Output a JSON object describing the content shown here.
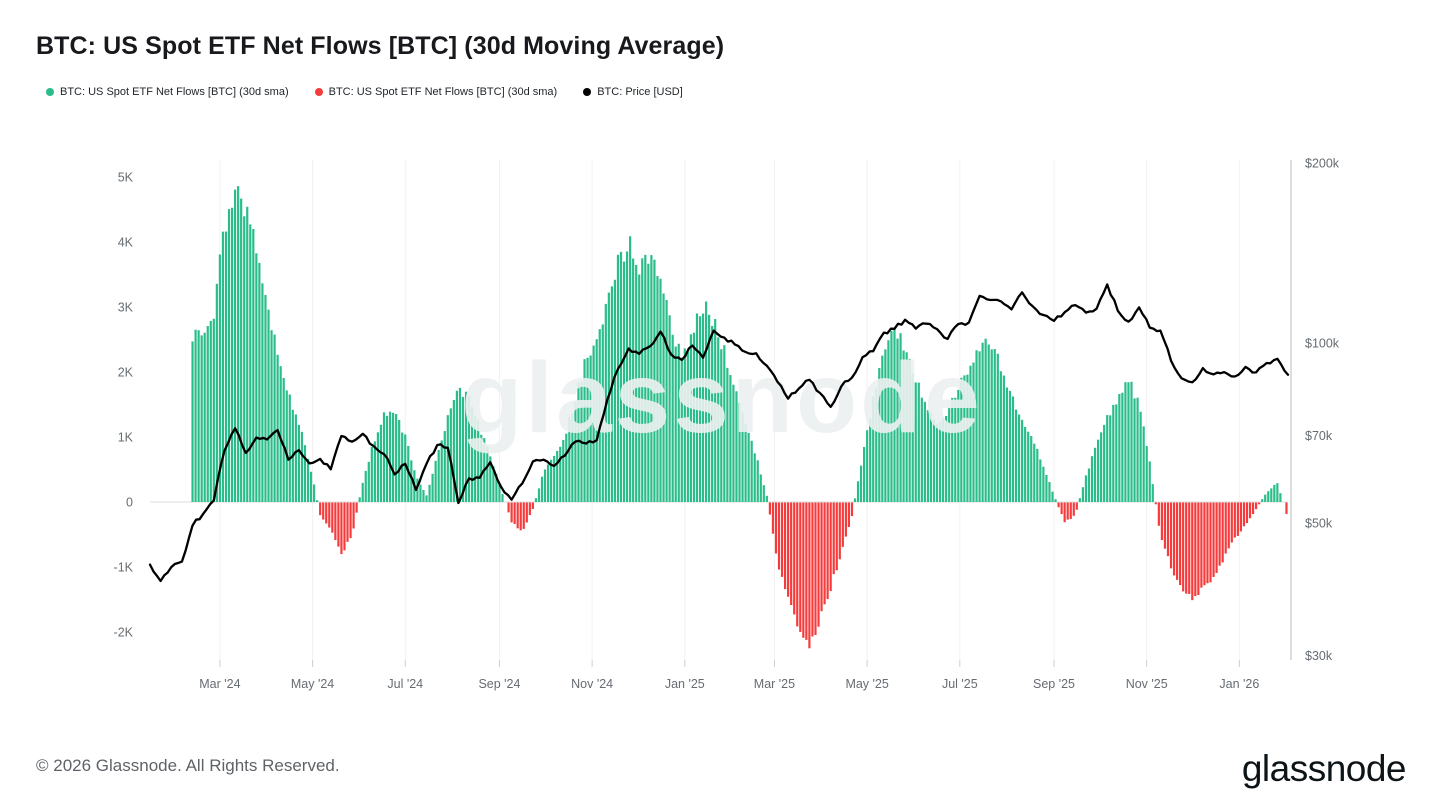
{
  "header": {
    "title": "BTC: US Spot ETF Net Flows [BTC] (30d Moving Average)"
  },
  "legend": [
    {
      "label": "BTC: US Spot ETF Net Flows [BTC] (30d sma)",
      "color": "#2ABD8A"
    },
    {
      "label": "BTC: US Spot ETF Net Flows [BTC] (30d sma)",
      "color": "#F53B3B"
    },
    {
      "label": "BTC: Price [USD]",
      "color": "#000000"
    }
  ],
  "watermark": "glassnode",
  "footer": {
    "copyright": "© 2026 Glassnode. All Rights Reserved.",
    "brand": "glassnode"
  },
  "chart_data": {
    "type": "bar",
    "title": "BTC: US Spot ETF Net Flows [BTC] (30d Moving Average)",
    "series": [
      {
        "name": "BTC: US Spot ETF Net Flows [BTC] (30d sma)",
        "type": "bar",
        "axis": "left",
        "unit": "K BTC"
      },
      {
        "name": "BTC: Price [USD]",
        "type": "line",
        "axis": "right",
        "unit": "USD (thousands)"
      }
    ],
    "colors": {
      "positive": "#2ABD8A",
      "negative": "#F53B3B",
      "price": "#000000"
    },
    "x_domain": [
      "2024-01-15",
      "2026-02-02"
    ],
    "left_axis": {
      "labels": [
        "5K",
        "4K",
        "3K",
        "2K",
        "1K",
        "0",
        "-1K",
        "-2K"
      ],
      "values": [
        5,
        4,
        3,
        2,
        1,
        0,
        -1,
        -2
      ],
      "scale": "linear",
      "unit": "K BTC"
    },
    "right_axis": {
      "labels": [
        "$200k",
        "$100k",
        "$70k",
        "$50k",
        "$30k"
      ],
      "values": [
        200,
        100,
        70,
        50,
        30
      ],
      "scale": "log",
      "unit": "USD (thousands)"
    },
    "x_ticks": [
      {
        "label": "Mar '24",
        "date": "2024-03-01"
      },
      {
        "label": "May '24",
        "date": "2024-05-01"
      },
      {
        "label": "Jul '24",
        "date": "2024-07-01"
      },
      {
        "label": "Sep '24",
        "date": "2024-09-01"
      },
      {
        "label": "Nov '24",
        "date": "2024-11-01"
      },
      {
        "label": "Jan '25",
        "date": "2025-01-01"
      },
      {
        "label": "Mar '25",
        "date": "2025-03-01"
      },
      {
        "label": "May '25",
        "date": "2025-05-01"
      },
      {
        "label": "Jul '25",
        "date": "2025-07-01"
      },
      {
        "label": "Sep '25",
        "date": "2025-09-01"
      },
      {
        "label": "Nov '25",
        "date": "2025-11-01"
      },
      {
        "label": "Jan '26",
        "date": "2026-01-01"
      }
    ],
    "dates": [
      "2024-01-15",
      "2024-01-22",
      "2024-01-29",
      "2024-02-05",
      "2024-02-12",
      "2024-02-19",
      "2024-02-26",
      "2024-03-04",
      "2024-03-11",
      "2024-03-18",
      "2024-03-25",
      "2024-04-01",
      "2024-04-08",
      "2024-04-15",
      "2024-04-22",
      "2024-04-29",
      "2024-05-06",
      "2024-05-13",
      "2024-05-20",
      "2024-05-27",
      "2024-06-03",
      "2024-06-10",
      "2024-06-17",
      "2024-06-24",
      "2024-07-01",
      "2024-07-08",
      "2024-07-15",
      "2024-07-22",
      "2024-07-29",
      "2024-08-05",
      "2024-08-12",
      "2024-08-19",
      "2024-08-26",
      "2024-09-02",
      "2024-09-09",
      "2024-09-16",
      "2024-09-23",
      "2024-09-30",
      "2024-10-07",
      "2024-10-14",
      "2024-10-21",
      "2024-10-28",
      "2024-11-04",
      "2024-11-11",
      "2024-11-18",
      "2024-11-25",
      "2024-12-02",
      "2024-12-09",
      "2024-12-16",
      "2024-12-23",
      "2024-12-30",
      "2025-01-06",
      "2025-01-13",
      "2025-01-20",
      "2025-01-27",
      "2025-02-03",
      "2025-02-10",
      "2025-02-17",
      "2025-02-24",
      "2025-03-03",
      "2025-03-10",
      "2025-03-17",
      "2025-03-24",
      "2025-03-31",
      "2025-04-07",
      "2025-04-14",
      "2025-04-21",
      "2025-04-28",
      "2025-05-05",
      "2025-05-12",
      "2025-05-19",
      "2025-05-26",
      "2025-06-02",
      "2025-06-09",
      "2025-06-16",
      "2025-06-23",
      "2025-06-30",
      "2025-07-07",
      "2025-07-14",
      "2025-07-21",
      "2025-07-28",
      "2025-08-04",
      "2025-08-11",
      "2025-08-18",
      "2025-08-25",
      "2025-09-01",
      "2025-09-08",
      "2025-09-15",
      "2025-09-22",
      "2025-09-29",
      "2025-10-06",
      "2025-10-13",
      "2025-10-20",
      "2025-10-27",
      "2025-11-03",
      "2025-11-10",
      "2025-11-17",
      "2025-11-24",
      "2025-12-01",
      "2025-12-08",
      "2025-12-15",
      "2025-12-22",
      "2025-12-29",
      "2026-01-05",
      "2026-01-12",
      "2026-01-19",
      "2026-01-26",
      "2026-02-02"
    ],
    "flow_sma_kbtc": [
      null,
      null,
      null,
      null,
      2.6,
      2.5,
      2.9,
      4.3,
      4.8,
      4.4,
      3.9,
      3.0,
      2.3,
      1.7,
      1.2,
      0.6,
      -0.2,
      -0.4,
      -0.8,
      -0.5,
      0.3,
      0.9,
      1.35,
      1.4,
      1.0,
      0.4,
      0.1,
      0.7,
      1.3,
      1.7,
      1.6,
      1.15,
      0.7,
      0.2,
      -0.3,
      -0.45,
      -0.1,
      0.45,
      0.7,
      1.0,
      1.6,
      2.2,
      2.5,
      3.1,
      3.7,
      4.0,
      3.5,
      3.9,
      3.4,
      2.7,
      2.2,
      2.6,
      3.0,
      2.8,
      2.3,
      1.7,
      1.2,
      0.7,
      0.1,
      -0.9,
      -1.5,
      -2.0,
      -2.15,
      -1.8,
      -1.3,
      -0.8,
      -0.2,
      0.7,
      1.6,
      2.3,
      2.6,
      2.4,
      1.9,
      1.5,
      1.15,
      1.4,
      1.75,
      2.0,
      2.35,
      2.45,
      2.1,
      1.6,
      1.25,
      0.95,
      0.55,
      0.1,
      -0.3,
      -0.2,
      0.4,
      0.9,
      1.3,
      1.6,
      1.9,
      1.5,
      0.6,
      -0.5,
      -1.0,
      -1.35,
      -1.5,
      -1.35,
      -1.15,
      -0.85,
      -0.55,
      -0.35,
      -0.1,
      0.15,
      0.3,
      -0.25
    ],
    "price_usd_k": [
      42.6,
      40.0,
      42.2,
      43.1,
      49.5,
      51.8,
      54.5,
      66.0,
      72.0,
      65.5,
      69.5,
      69.0,
      71.5,
      63.8,
      66.2,
      62.9,
      64.0,
      61.5,
      69.9,
      68.4,
      70.5,
      67.3,
      65.2,
      60.3,
      62.8,
      56.8,
      62.8,
      67.5,
      66.8,
      54.0,
      59.4,
      59.5,
      63.2,
      57.5,
      54.7,
      58.2,
      63.4,
      63.8,
      62.3,
      64.8,
      68.4,
      67.9,
      68.8,
      80.4,
      90.5,
      97.9,
      95.9,
      98.7,
      104.5,
      95.7,
      93.7,
      99.0,
      94.5,
      104.9,
      102.1,
      99.4,
      96.6,
      96.1,
      91.6,
      86.1,
      80.7,
      83.9,
      86.8,
      82.5,
      78.2,
      84.6,
      87.5,
      94.7,
      96.9,
      104.1,
      105.6,
      109.4,
      105.7,
      107.7,
      105.5,
      101.6,
      107.6,
      108.2,
      119.9,
      118.0,
      117.4,
      113.8,
      121.5,
      115.2,
      111.4,
      108.9,
      112.6,
      115.7,
      112.4,
      114.1,
      125.3,
      113.2,
      108.6,
      114.7,
      106.1,
      104.9,
      93.4,
      87.3,
      86.0,
      90.8,
      88.6,
      89.4,
      87.9,
      91.2,
      89.3,
      92.6,
      94.1,
      88.5
    ]
  }
}
